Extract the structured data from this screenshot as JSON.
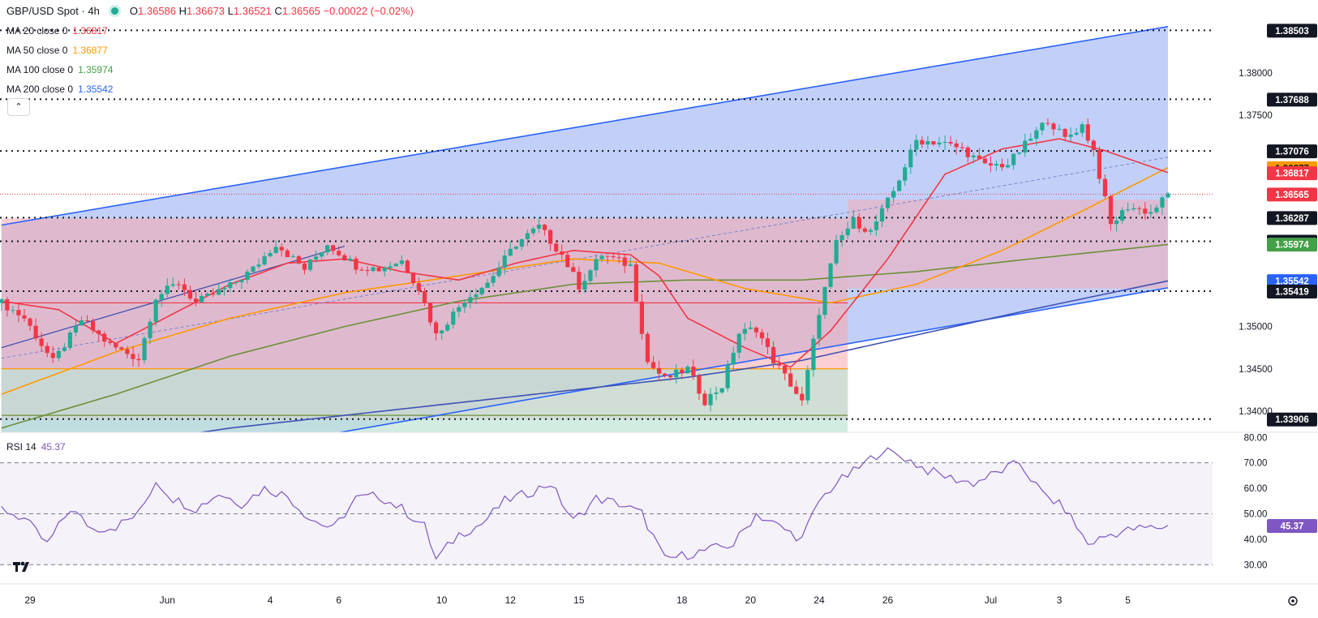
{
  "header": {
    "title": "GBP/USD Spot · 4h",
    "ohlc": {
      "o_label": "O",
      "o": "1.36586",
      "h_label": "H",
      "h": "1.36673",
      "l_label": "L",
      "l": "1.36521",
      "c_label": "C",
      "c": "1.36565",
      "change": "−0.00022 (−0.02%)"
    }
  },
  "legend": [
    {
      "label": "MA 20 close 0",
      "value": "1.36817",
      "color": "#f23645"
    },
    {
      "label": "MA 50 close 0",
      "value": "1.36877",
      "color": "#ff9800"
    },
    {
      "label": "MA 100 close 0",
      "value": "1.35974",
      "color": "#43a047"
    },
    {
      "label": "MA 200 close 0",
      "value": "1.35542",
      "color": "#2962ff"
    }
  ],
  "collapse_icon": "chevron-up-icon",
  "rsi": {
    "label": "RSI 14",
    "value": "45.37",
    "color": "#7e57c2"
  },
  "logo": "tradingview-logo",
  "colors": {
    "up": "#22ab94",
    "down": "#f23645",
    "ma20": "#f23645",
    "ma50": "#ff9800",
    "ma100": "#6d8f3a",
    "ma200": "#3f51b5",
    "channel": "#2962ff",
    "rsi": "#7e57c2"
  },
  "chart_data": {
    "type": "candlestick",
    "title": "GBP/USD Spot · 4h",
    "xlabel": "",
    "ylabel": "",
    "ylim": [
      1.3375,
      1.3865
    ],
    "y_ticks": [
      "1.38000",
      "1.37500",
      "1.35000",
      "1.34500",
      "1.34000"
    ],
    "x_ticks": [
      {
        "label": "29",
        "i": 5
      },
      {
        "label": "Jun",
        "i": 29
      },
      {
        "label": "4",
        "i": 47
      },
      {
        "label": "6",
        "i": 59
      },
      {
        "label": "10",
        "i": 77
      },
      {
        "label": "12",
        "i": 89
      },
      {
        "label": "15",
        "i": 101
      },
      {
        "label": "18",
        "i": 119
      },
      {
        "label": "20",
        "i": 131
      },
      {
        "label": "24",
        "i": 143
      },
      {
        "label": "26",
        "i": 155
      },
      {
        "label": "Jul",
        "i": 173
      },
      {
        "label": "3",
        "i": 185
      },
      {
        "label": "5",
        "i": 197
      }
    ],
    "horizontal_levels": [
      "1.38503",
      "1.37688",
      "1.37076",
      "1.36287",
      "1.36008",
      "1.35419",
      "1.33906"
    ],
    "price_labels": [
      {
        "text": "1.38503",
        "kind": "level"
      },
      {
        "text": "1.37688",
        "kind": "level"
      },
      {
        "text": "1.37076",
        "kind": "level"
      },
      {
        "text": "1.36877",
        "kind": "ma50"
      },
      {
        "text": "1.36817",
        "kind": "ma20"
      },
      {
        "text": "1.36565",
        "kind": "price"
      },
      {
        "text": "1.36287",
        "kind": "level"
      },
      {
        "text": "1.36008",
        "kind": "level"
      },
      {
        "text": "1.35974",
        "kind": "ma100"
      },
      {
        "text": "1.35542",
        "kind": "ma200"
      },
      {
        "text": "1.35419",
        "kind": "level"
      },
      {
        "text": "1.33906",
        "kind": "level"
      }
    ],
    "channel": {
      "upper": [
        [
          0,
          1.362
        ],
        [
          200,
          1.385
        ]
      ],
      "lower": [
        [
          0,
          1.3305
        ],
        [
          200,
          1.3541
        ]
      ]
    },
    "zones": [
      {
        "name": "stop",
        "color": "#f7a8ad",
        "i_start": 0,
        "i_end": 148,
        "y_top": 1.3628,
        "y_bottom": 1.339
      },
      {
        "name": "target",
        "color": "#bfe4d6",
        "i_start": 0,
        "i_end": 148,
        "y_top": 1.345,
        "y_bottom": 1.336
      }
    ],
    "ohlc_keypoints": [
      [
        0,
        1.3528
      ],
      [
        4,
        1.351
      ],
      [
        9,
        1.3458
      ],
      [
        14,
        1.3508
      ],
      [
        19,
        1.3478
      ],
      [
        24,
        1.3462
      ],
      [
        27,
        1.3535
      ],
      [
        31,
        1.3552
      ],
      [
        34,
        1.3528
      ],
      [
        40,
        1.3548
      ],
      [
        44,
        1.3568
      ],
      [
        48,
        1.3598
      ],
      [
        53,
        1.3568
      ],
      [
        57,
        1.3598
      ],
      [
        62,
        1.3572
      ],
      [
        66,
        1.3568
      ],
      [
        70,
        1.3578
      ],
      [
        73,
        1.3545
      ],
      [
        76,
        1.349
      ],
      [
        81,
        1.3532
      ],
      [
        85,
        1.3552
      ],
      [
        90,
        1.3598
      ],
      [
        94,
        1.3618
      ],
      [
        98,
        1.3585
      ],
      [
        101,
        1.3548
      ],
      [
        105,
        1.3585
      ],
      [
        110,
        1.3572
      ],
      [
        113,
        1.3458
      ],
      [
        116,
        1.3438
      ],
      [
        120,
        1.345
      ],
      [
        123,
        1.3412
      ],
      [
        126,
        1.343
      ],
      [
        129,
        1.3492
      ],
      [
        132,
        1.3498
      ],
      [
        135,
        1.346
      ],
      [
        138,
        1.3432
      ],
      [
        140,
        1.341
      ],
      [
        143,
        1.3518
      ],
      [
        146,
        1.3598
      ],
      [
        149,
        1.3625
      ],
      [
        152,
        1.3612
      ],
      [
        156,
        1.366
      ],
      [
        160,
        1.372
      ],
      [
        164,
        1.3718
      ],
      [
        168,
        1.371
      ],
      [
        172,
        1.369
      ],
      [
        176,
        1.3692
      ],
      [
        179,
        1.3715
      ],
      [
        183,
        1.3745
      ],
      [
        186,
        1.3722
      ],
      [
        189,
        1.3738
      ],
      [
        191,
        1.3708
      ],
      [
        194,
        1.362
      ],
      [
        197,
        1.3642
      ],
      [
        201,
        1.3635
      ],
      [
        204,
        1.3656
      ]
    ],
    "ma20_keypoints": [
      [
        0,
        1.353
      ],
      [
        10,
        1.352
      ],
      [
        20,
        1.348
      ],
      [
        30,
        1.3515
      ],
      [
        40,
        1.355
      ],
      [
        50,
        1.3575
      ],
      [
        60,
        1.358
      ],
      [
        70,
        1.3565
      ],
      [
        80,
        1.3555
      ],
      [
        90,
        1.3575
      ],
      [
        100,
        1.359
      ],
      [
        110,
        1.3585
      ],
      [
        115,
        1.356
      ],
      [
        120,
        1.351
      ],
      [
        130,
        1.3475
      ],
      [
        138,
        1.3452
      ],
      [
        145,
        1.3495
      ],
      [
        155,
        1.358
      ],
      [
        165,
        1.368
      ],
      [
        175,
        1.371
      ],
      [
        185,
        1.3722
      ],
      [
        193,
        1.3708
      ],
      [
        204,
        1.3682
      ]
    ],
    "ma50_keypoints": [
      [
        0,
        1.342
      ],
      [
        20,
        1.347
      ],
      [
        40,
        1.351
      ],
      [
        60,
        1.354
      ],
      [
        80,
        1.356
      ],
      [
        100,
        1.358
      ],
      [
        115,
        1.3575
      ],
      [
        130,
        1.3545
      ],
      [
        145,
        1.3528
      ],
      [
        160,
        1.355
      ],
      [
        175,
        1.359
      ],
      [
        190,
        1.364
      ],
      [
        204,
        1.3688
      ]
    ],
    "ma100_keypoints": [
      [
        0,
        1.338
      ],
      [
        20,
        1.342
      ],
      [
        40,
        1.3465
      ],
      [
        60,
        1.35
      ],
      [
        80,
        1.353
      ],
      [
        100,
        1.355
      ],
      [
        120,
        1.3555
      ],
      [
        140,
        1.3555
      ],
      [
        160,
        1.3565
      ],
      [
        180,
        1.358
      ],
      [
        204,
        1.3597
      ]
    ],
    "ma200_keypoints": [
      [
        0,
        1.3345
      ],
      [
        20,
        1.336
      ],
      [
        40,
        1.338
      ],
      [
        60,
        1.3395
      ],
      [
        80,
        1.341
      ],
      [
        100,
        1.3425
      ],
      [
        120,
        1.344
      ],
      [
        140,
        1.346
      ],
      [
        160,
        1.349
      ],
      [
        180,
        1.352
      ],
      [
        204,
        1.3554
      ]
    ],
    "rsi_ylim": [
      25,
      82
    ],
    "rsi_ticks": [
      "80.00",
      "70.00",
      "60.00",
      "50.00",
      "40.00",
      "30.00"
    ],
    "rsi_band": [
      30,
      70
    ],
    "rsi_midline": 50,
    "rsi_keypoints": [
      [
        0,
        52
      ],
      [
        4,
        48
      ],
      [
        8,
        38
      ],
      [
        12,
        52
      ],
      [
        16,
        44
      ],
      [
        20,
        45
      ],
      [
        24,
        50
      ],
      [
        27,
        63
      ],
      [
        30,
        56
      ],
      [
        34,
        52
      ],
      [
        38,
        58
      ],
      [
        42,
        54
      ],
      [
        46,
        60
      ],
      [
        50,
        57
      ],
      [
        54,
        48
      ],
      [
        58,
        44
      ],
      [
        62,
        56
      ],
      [
        66,
        57
      ],
      [
        70,
        52
      ],
      [
        74,
        45
      ],
      [
        76,
        32
      ],
      [
        80,
        42
      ],
      [
        84,
        46
      ],
      [
        88,
        55
      ],
      [
        92,
        58
      ],
      [
        96,
        62
      ],
      [
        100,
        47
      ],
      [
        104,
        56
      ],
      [
        108,
        54
      ],
      [
        112,
        50
      ],
      [
        116,
        32
      ],
      [
        120,
        34
      ],
      [
        124,
        36
      ],
      [
        128,
        38
      ],
      [
        132,
        50
      ],
      [
        136,
        45
      ],
      [
        140,
        40
      ],
      [
        143,
        55
      ],
      [
        146,
        62
      ],
      [
        150,
        68
      ],
      [
        154,
        75
      ],
      [
        158,
        72
      ],
      [
        162,
        67
      ],
      [
        166,
        64
      ],
      [
        170,
        62
      ],
      [
        174,
        66
      ],
      [
        178,
        70
      ],
      [
        182,
        58
      ],
      [
        186,
        52
      ],
      [
        190,
        38
      ],
      [
        194,
        42
      ],
      [
        198,
        44
      ],
      [
        204,
        45
      ]
    ]
  }
}
